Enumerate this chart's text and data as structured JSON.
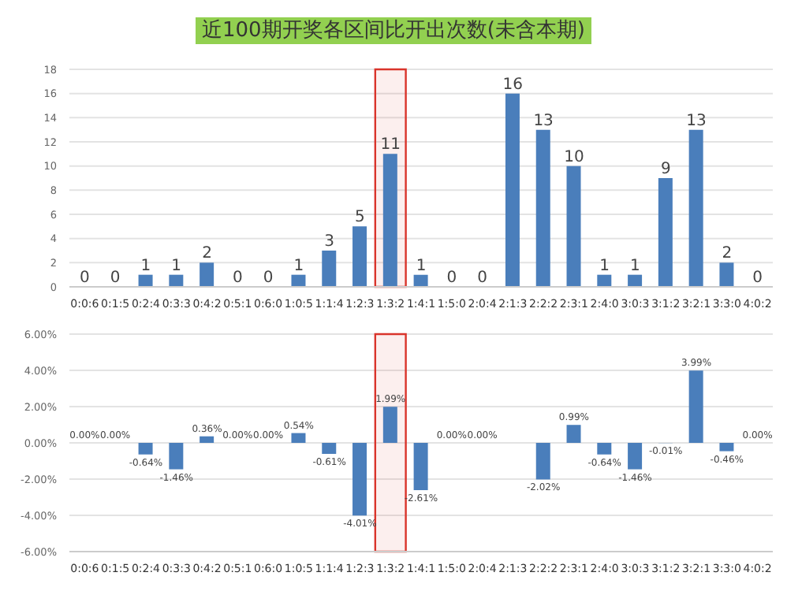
{
  "chart_data": [
    {
      "type": "bar",
      "title": "近100期开奖各区间比开出次数(未含本期)",
      "categories": [
        "0:0:6",
        "0:1:5",
        "0:2:4",
        "0:3:3",
        "0:4:2",
        "0:5:1",
        "0:6:0",
        "1:0:5",
        "1:1:4",
        "1:2:3",
        "1:3:2",
        "1:4:1",
        "1:5:0",
        "2:0:4",
        "2:1:3",
        "2:2:2",
        "2:3:1",
        "2:4:0",
        "3:0:3",
        "3:1:2",
        "3:2:1",
        "3:3:0",
        "4:0:2"
      ],
      "values": [
        0,
        0,
        1,
        1,
        2,
        0,
        0,
        1,
        3,
        5,
        11,
        1,
        0,
        0,
        16,
        13,
        10,
        1,
        1,
        9,
        13,
        2,
        0
      ],
      "color": "#4a7ebb",
      "ylim": [
        0,
        18
      ],
      "yticks": [
        0,
        2,
        4,
        6,
        8,
        10,
        12,
        14,
        16,
        18
      ],
      "grid": "y",
      "data_labels": true,
      "bands": [
        {
          "axis": "x",
          "from": "1:3:2",
          "to": "1:3:2",
          "color": "#d9342b"
        }
      ]
    },
    {
      "type": "bar",
      "categories": [
        "0:0:6",
        "0:1:5",
        "0:2:4",
        "0:3:3",
        "0:4:2",
        "0:5:1",
        "0:6:0",
        "1:0:5",
        "1:1:4",
        "1:2:3",
        "1:3:2",
        "1:4:1",
        "1:5:0",
        "2:0:4",
        "2:1:3",
        "2:2:2",
        "2:3:1",
        "2:4:0",
        "3:0:3",
        "3:1:2",
        "3:2:1",
        "3:3:0",
        "4:0:2"
      ],
      "values": [
        0,
        0,
        -0.64,
        -1.46,
        0.36,
        0,
        0,
        0.54,
        -0.61,
        -4.01,
        1.99,
        -2.61,
        0,
        0,
        null,
        -2.02,
        0.99,
        -0.64,
        -1.46,
        -0.01,
        3.99,
        -0.46,
        0
      ],
      "value_labels": [
        "0.00%",
        "0.00%",
        "-0.64%",
        "-1.46%",
        "0.36%",
        "0.00%",
        "0.00%",
        "0.54%",
        "-0.61%",
        "-4.01%",
        "1.99%",
        "-2.61%",
        "0.00%",
        "0.00%",
        null,
        "-2.02%",
        "0.99%",
        "-0.64%",
        "-1.46%",
        "-0.01%",
        "3.99%",
        "-0.46%",
        "0.00%"
      ],
      "color": "#4a7ebb",
      "ylim": [
        -6,
        6
      ],
      "yticks": [
        {
          "value": -6,
          "label": "-6.00%"
        },
        {
          "value": -4,
          "label": "-4.00%"
        },
        {
          "value": -2,
          "label": "-2.00%"
        },
        {
          "value": 0,
          "label": "0.00%"
        },
        {
          "value": 2,
          "label": "2.00%"
        },
        {
          "value": 4,
          "label": "4.00%"
        },
        {
          "value": 6,
          "label": "6.00%"
        }
      ],
      "grid": "y",
      "bands": [
        {
          "axis": "x",
          "from": "1:3:2",
          "to": "1:3:2",
          "color": "#d9342b"
        }
      ]
    }
  ]
}
